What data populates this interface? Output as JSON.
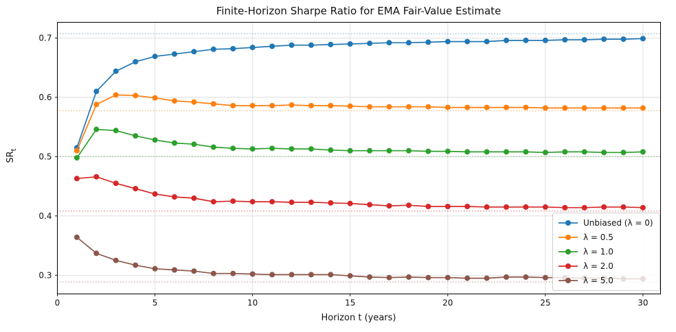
{
  "chart_data": {
    "type": "line",
    "title": "Finite-Horizon Sharpe Ratio for EMA Fair-Value Estimate",
    "xlabel": "Horizon t (years)",
    "ylabel_base": "SR",
    "ylabel_sub": "t",
    "xlim": [
      0,
      30.9
    ],
    "ylim": [
      0.2685,
      0.7265
    ],
    "xticks": [
      0,
      5,
      10,
      15,
      20,
      25,
      30
    ],
    "yticks": [
      0.3,
      0.4,
      0.5,
      0.6,
      0.7
    ],
    "grid": true,
    "grid_color": "#dcdcdc",
    "legend_position": "lower right",
    "marker_size": 4,
    "x": [
      1,
      2,
      3,
      4,
      5,
      6,
      7,
      8,
      9,
      10,
      11,
      12,
      13,
      14,
      15,
      16,
      17,
      18,
      19,
      20,
      21,
      22,
      23,
      24,
      25,
      26,
      27,
      28,
      29,
      30
    ],
    "series": [
      {
        "name": "Unbiased (λ = 0)",
        "color": "#1f77b4",
        "asymptote": 0.7071,
        "values": [
          0.515,
          0.61,
          0.644,
          0.66,
          0.669,
          0.673,
          0.677,
          0.681,
          0.682,
          0.684,
          0.686,
          0.688,
          0.688,
          0.689,
          0.69,
          0.691,
          0.692,
          0.692,
          0.693,
          0.694,
          0.694,
          0.694,
          0.696,
          0.696,
          0.696,
          0.697,
          0.697,
          0.698,
          0.698,
          0.699
        ]
      },
      {
        "name": "λ = 0.5",
        "color": "#ff7f0e",
        "asymptote": 0.5774,
        "values": [
          0.51,
          0.588,
          0.604,
          0.603,
          0.599,
          0.594,
          0.592,
          0.589,
          0.586,
          0.586,
          0.586,
          0.587,
          0.586,
          0.586,
          0.585,
          0.584,
          0.584,
          0.584,
          0.584,
          0.583,
          0.583,
          0.583,
          0.583,
          0.583,
          0.582,
          0.582,
          0.582,
          0.582,
          0.582,
          0.582
        ]
      },
      {
        "name": "λ = 1.0",
        "color": "#2ca02c",
        "asymptote": 0.5,
        "values": [
          0.498,
          0.546,
          0.544,
          0.535,
          0.528,
          0.523,
          0.521,
          0.516,
          0.514,
          0.513,
          0.514,
          0.513,
          0.513,
          0.511,
          0.51,
          0.51,
          0.51,
          0.51,
          0.509,
          0.509,
          0.508,
          0.508,
          0.508,
          0.508,
          0.507,
          0.508,
          0.508,
          0.507,
          0.507,
          0.508
        ]
      },
      {
        "name": "λ = 2.0",
        "color": "#d62728",
        "asymptote": 0.4082,
        "values": [
          0.463,
          0.466,
          0.455,
          0.446,
          0.437,
          0.432,
          0.43,
          0.424,
          0.425,
          0.424,
          0.424,
          0.423,
          0.423,
          0.422,
          0.421,
          0.419,
          0.417,
          0.418,
          0.416,
          0.416,
          0.416,
          0.415,
          0.415,
          0.415,
          0.415,
          0.414,
          0.414,
          0.415,
          0.415,
          0.414
        ]
      },
      {
        "name": "λ = 5.0",
        "color": "#8c564b",
        "asymptote": 0.2887,
        "values": [
          0.364,
          0.337,
          0.325,
          0.317,
          0.311,
          0.309,
          0.307,
          0.303,
          0.303,
          0.302,
          0.301,
          0.301,
          0.301,
          0.301,
          0.299,
          0.297,
          0.296,
          0.297,
          0.296,
          0.296,
          0.295,
          0.295,
          0.297,
          0.297,
          0.296,
          0.296,
          0.295,
          0.295,
          0.294,
          0.294
        ]
      }
    ]
  }
}
